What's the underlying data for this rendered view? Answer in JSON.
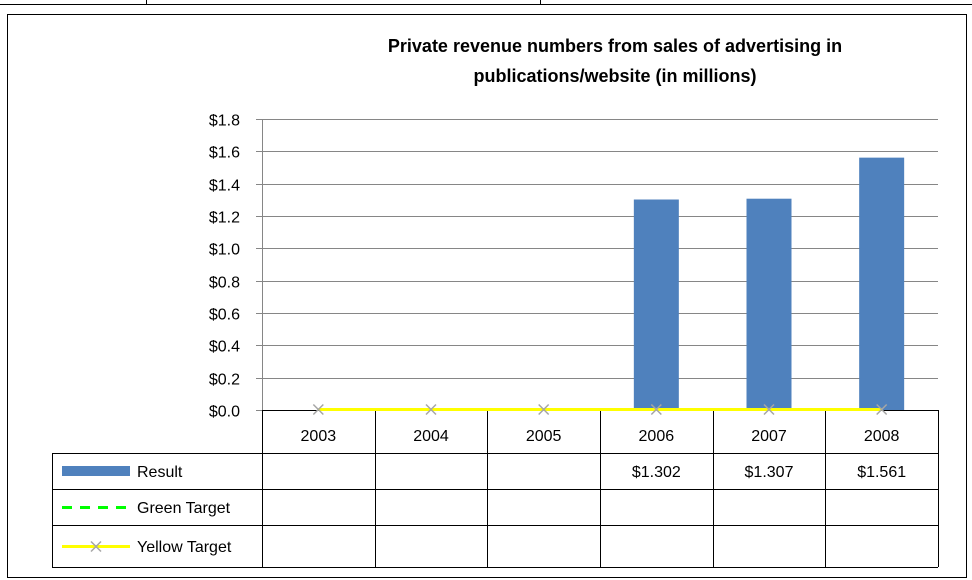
{
  "chart_data": {
    "type": "bar",
    "title": "Private revenue numbers from sales of advertising in publications/website (in millions)",
    "title_lines": [
      "Private revenue numbers from sales of advertising in",
      "publications/website (in millions)"
    ],
    "categories": [
      "2003",
      "2004",
      "2005",
      "2006",
      "2007",
      "2008"
    ],
    "ylim": [
      0,
      1.8
    ],
    "yticks": [
      0.0,
      0.2,
      0.4,
      0.6,
      0.8,
      1.0,
      1.2,
      1.4,
      1.6,
      1.8
    ],
    "ytick_labels": [
      "$0.0",
      "$0.2",
      "$0.4",
      "$0.6",
      "$0.8",
      "$1.0",
      "$1.2",
      "$1.4",
      "$1.6",
      "$1.8"
    ],
    "grid": true,
    "legend_placement": "data table",
    "series": [
      {
        "name": "Result",
        "type": "bar",
        "color": "#4f81bd",
        "values": [
          null,
          null,
          null,
          1.302,
          1.307,
          1.561
        ],
        "table_values": [
          "",
          "",
          "",
          "$1.302",
          "$1.307",
          "$1.561"
        ]
      },
      {
        "name": "Green Target",
        "type": "line",
        "style": "dashed",
        "color": "#00ff00",
        "values": [
          null,
          null,
          null,
          null,
          null,
          null
        ],
        "table_values": [
          "",
          "",
          "",
          "",
          "",
          ""
        ]
      },
      {
        "name": "Yellow Target",
        "type": "line",
        "marker": "x",
        "color": "#ffff00",
        "marker_color": "#a6a6a6",
        "values": [
          0,
          0,
          0,
          0,
          0,
          0
        ],
        "table_values": [
          "",
          "",
          "",
          "",
          "",
          ""
        ]
      }
    ]
  }
}
